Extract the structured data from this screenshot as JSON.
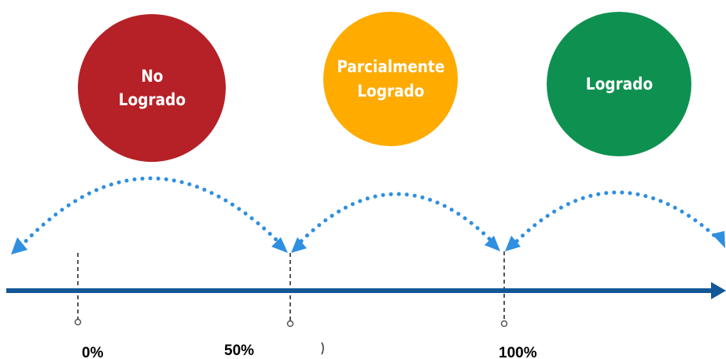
{
  "colors": {
    "no_logrado": "#b52126",
    "parcialmente_logrado": "#ffab00",
    "logrado": "#0e9150",
    "axis": "#135796",
    "arc": "#2f8fe0",
    "tick": "#555555"
  },
  "circles": [
    {
      "label": "No\nLogrado"
    },
    {
      "label": "Parcialmente\nLogrado"
    },
    {
      "label": "Logrado"
    }
  ],
  "scale": {
    "labels": [
      "0%",
      "50%",
      "100%"
    ]
  }
}
